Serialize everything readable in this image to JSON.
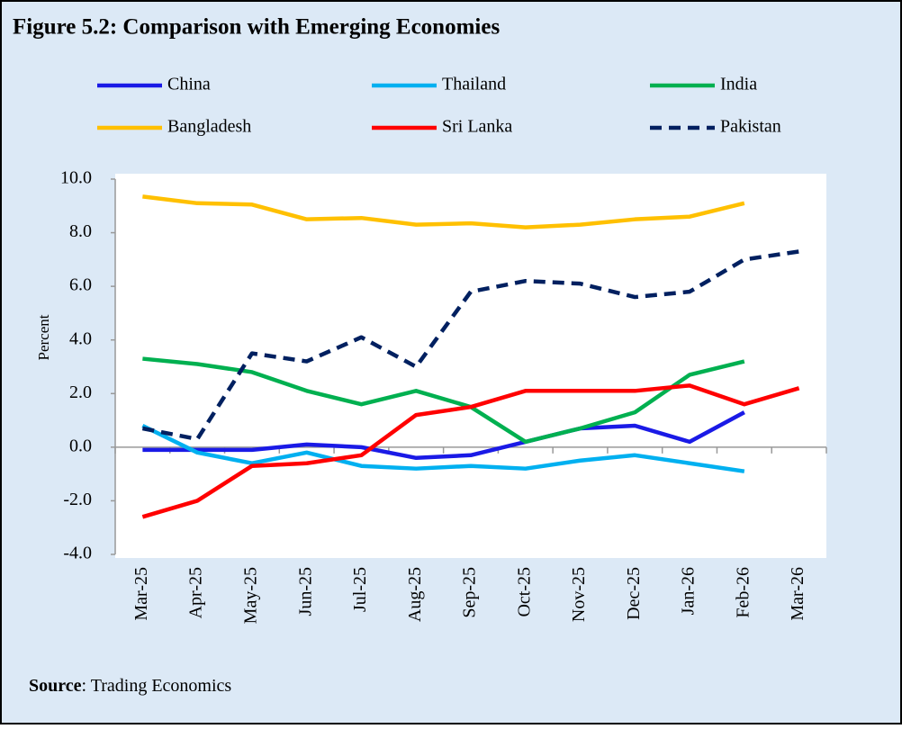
{
  "chart_data": {
    "type": "line",
    "title": "Figure 5.2: Comparison with Emerging Economies",
    "y_label": "Percent",
    "source_label": "Source",
    "source_text": ": Trading Economics",
    "categories": [
      "Mar-25",
      "Apr-25",
      "May-25",
      "Jun-25",
      "Jul-25",
      "Aug-25",
      "Sep-25",
      "Oct-25",
      "Nov-25",
      "Dec-25",
      "Jan-26",
      "Feb-26",
      "Mar-26"
    ],
    "ylim": [
      -4,
      10
    ],
    "yticks": [
      {
        "value": -4,
        "label": "-4.0"
      },
      {
        "value": -2,
        "label": "-2.0"
      },
      {
        "value": 0,
        "label": "0.0"
      },
      {
        "value": 2,
        "label": "2.0"
      },
      {
        "value": 4,
        "label": "4.0"
      },
      {
        "value": 6,
        "label": "6.0"
      },
      {
        "value": 8,
        "label": "8.0"
      },
      {
        "value": 10,
        "label": "10.0"
      }
    ],
    "grid": false,
    "series": [
      {
        "name": "China",
        "color": "#1a1ae6",
        "dashed": false,
        "values": [
          -0.1,
          -0.1,
          -0.1,
          0.1,
          0.0,
          -0.4,
          -0.3,
          0.2,
          0.7,
          0.8,
          0.2,
          1.3,
          null
        ]
      },
      {
        "name": "Thailand",
        "color": "#00b0f0",
        "dashed": false,
        "values": [
          0.8,
          -0.2,
          -0.6,
          -0.2,
          -0.7,
          -0.8,
          -0.7,
          -0.8,
          -0.5,
          -0.3,
          -0.6,
          -0.9,
          null
        ]
      },
      {
        "name": "India",
        "color": "#00b050",
        "dashed": false,
        "values": [
          3.3,
          3.1,
          2.8,
          2.1,
          1.6,
          2.1,
          1.5,
          0.2,
          0.7,
          1.3,
          2.7,
          3.2,
          null
        ]
      },
      {
        "name": "Bangladesh",
        "color": "#ffc000",
        "dashed": false,
        "values": [
          9.35,
          9.1,
          9.05,
          8.5,
          8.55,
          8.3,
          8.35,
          8.2,
          8.3,
          8.5,
          8.6,
          9.1,
          null
        ]
      },
      {
        "name": "Sri Lanka",
        "color": "#ff0000",
        "dashed": false,
        "values": [
          -2.6,
          -2.0,
          -0.7,
          -0.6,
          -0.3,
          1.2,
          1.5,
          2.1,
          2.1,
          2.1,
          2.3,
          1.6,
          2.2
        ]
      },
      {
        "name": "Pakistan",
        "color": "#002060",
        "dashed": true,
        "values": [
          0.7,
          0.3,
          3.5,
          3.2,
          4.1,
          3.0,
          5.8,
          6.2,
          6.1,
          5.6,
          5.8,
          7.0,
          7.3
        ]
      }
    ]
  }
}
